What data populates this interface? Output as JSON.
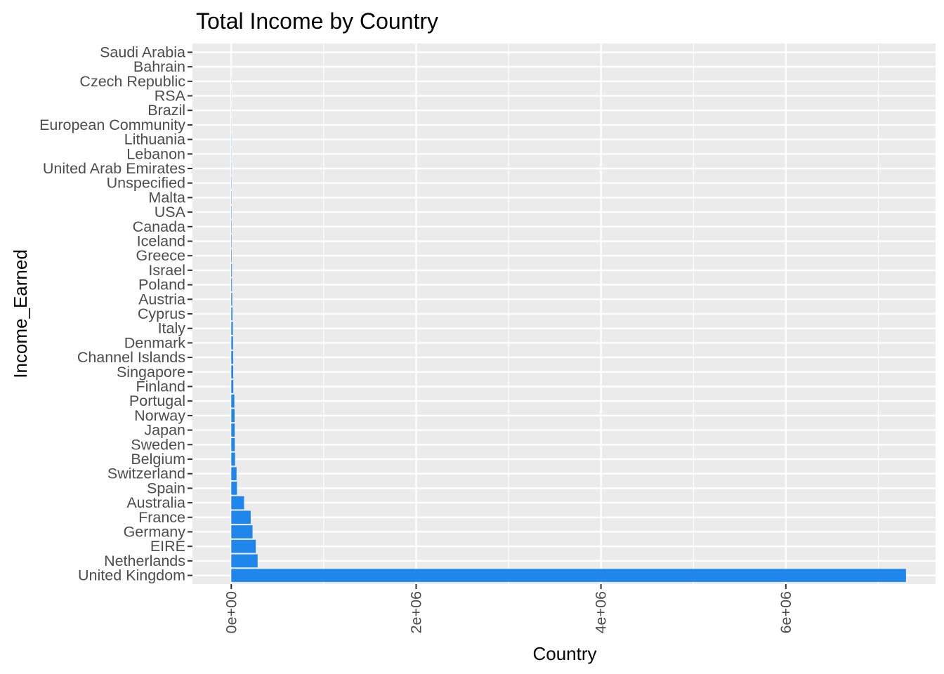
{
  "chart_data": {
    "type": "bar",
    "orientation": "horizontal",
    "title": "Total Income by Country",
    "xlabel": "Country",
    "ylabel": "Income_Earned",
    "xlim": [
      -420000,
      7620000
    ],
    "x_ticks": [
      0,
      2000000,
      4000000,
      6000000
    ],
    "x_tick_labels": [
      "0e+00",
      "2e+06",
      "4e+06",
      "6e+06"
    ],
    "grid": true,
    "legend": "none",
    "colors": {
      "bar": "#1f86ec",
      "panel": "#ebebeb",
      "grid": "#ffffff"
    },
    "categories": [
      "United Kingdom",
      "Netherlands",
      "EIRE",
      "Germany",
      "France",
      "Australia",
      "Spain",
      "Switzerland",
      "Belgium",
      "Sweden",
      "Japan",
      "Norway",
      "Portugal",
      "Finland",
      "Singapore",
      "Channel Islands",
      "Denmark",
      "Italy",
      "Cyprus",
      "Austria",
      "Poland",
      "Israel",
      "Greece",
      "Iceland",
      "Canada",
      "USA",
      "Malta",
      "Unspecified",
      "United Arab Emirates",
      "Lebanon",
      "Lithuania",
      "European Community",
      "Brazil",
      "RSA",
      "Czech Republic",
      "Bahrain",
      "Saudi Arabia"
    ],
    "values": [
      7300000,
      285000,
      265000,
      230000,
      210000,
      138000,
      61000,
      57000,
      41000,
      38000,
      37000,
      36000,
      33000,
      22000,
      21000,
      20000,
      19000,
      17000,
      13000,
      10000,
      7300,
      7100,
      4700,
      4300,
      3700,
      3600,
      2700,
      2700,
      1900,
      1700,
      1700,
      1300,
      1100,
      1000,
      800,
      550,
      130
    ]
  }
}
